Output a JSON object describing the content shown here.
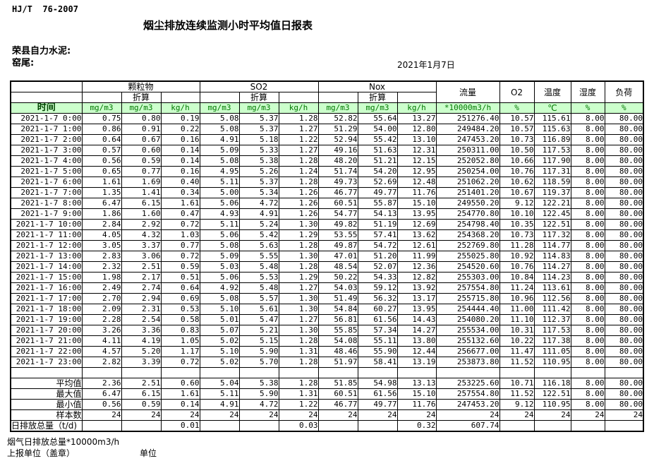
{
  "page": {
    "doc_code": "HJ/T  76-2007",
    "title": "烟尘排放连续监测小时平均值日报表",
    "company": "荣县自力水泥:",
    "location": "窑尾:",
    "date": "2021年1月7日"
  },
  "colors": {
    "header_bg": "#ccffcc",
    "unit_text": "#007700",
    "time_header_text": "#004400",
    "border": "#000000"
  },
  "table": {
    "col_groups": {
      "pm": "颗粒物",
      "so2": "SO2",
      "nox": "Nox",
      "flow": "流量",
      "o2": "O2",
      "temp": "温度",
      "humidity": "湿度",
      "load": "负荷"
    },
    "converted_label": "折算",
    "time_label": "时间",
    "units": {
      "mgm3": "mg/m3",
      "kgh": "kg/h",
      "flow": "*10000m3/h",
      "percent": "%",
      "celsius": "℃"
    },
    "rows": [
      [
        "2021-1-7 0:00",
        "0.75",
        "0.80",
        "0.19",
        "5.08",
        "5.37",
        "1.28",
        "52.82",
        "55.64",
        "13.27",
        "251276.40",
        "10.57",
        "115.61",
        "8.00",
        "80.00"
      ],
      [
        "2021-1-7 1:00",
        "0.86",
        "0.91",
        "0.22",
        "5.08",
        "5.37",
        "1.27",
        "51.29",
        "54.00",
        "12.80",
        "249484.20",
        "10.57",
        "115.63",
        "8.00",
        "80.00"
      ],
      [
        "2021-1-7 2:00",
        "0.64",
        "0.67",
        "0.16",
        "4.91",
        "5.18",
        "1.22",
        "52.94",
        "55.42",
        "13.10",
        "247453.20",
        "10.73",
        "116.89",
        "8.00",
        "80.00"
      ],
      [
        "2021-1-7 3:00",
        "0.57",
        "0.60",
        "0.14",
        "5.09",
        "5.33",
        "1.27",
        "49.16",
        "51.63",
        "12.31",
        "250311.00",
        "10.50",
        "117.53",
        "8.00",
        "80.00"
      ],
      [
        "2021-1-7 4:00",
        "0.56",
        "0.59",
        "0.14",
        "5.08",
        "5.38",
        "1.28",
        "48.20",
        "51.21",
        "12.15",
        "252052.80",
        "10.66",
        "117.90",
        "8.00",
        "80.00"
      ],
      [
        "2021-1-7 5:00",
        "0.65",
        "0.77",
        "0.16",
        "4.95",
        "5.26",
        "1.24",
        "51.74",
        "54.20",
        "12.95",
        "250254.00",
        "10.76",
        "117.31",
        "8.00",
        "80.00"
      ],
      [
        "2021-1-7 6:00",
        "1.61",
        "1.69",
        "0.40",
        "5.11",
        "5.37",
        "1.28",
        "49.73",
        "52.69",
        "12.48",
        "251062.20",
        "10.62",
        "118.59",
        "8.00",
        "80.00"
      ],
      [
        "2021-1-7 7:00",
        "1.35",
        "1.41",
        "0.34",
        "5.00",
        "5.34",
        "1.26",
        "46.77",
        "49.77",
        "11.76",
        "251401.20",
        "10.67",
        "119.37",
        "8.00",
        "80.00"
      ],
      [
        "2021-1-7 8:00",
        "6.47",
        "6.15",
        "1.61",
        "5.06",
        "4.72",
        "1.26",
        "60.51",
        "55.87",
        "15.10",
        "249550.20",
        "9.12",
        "122.21",
        "8.00",
        "80.00"
      ],
      [
        "2021-1-7 9:00",
        "1.86",
        "1.60",
        "0.47",
        "4.93",
        "4.91",
        "1.26",
        "54.77",
        "54.13",
        "13.95",
        "254770.80",
        "10.10",
        "122.45",
        "8.00",
        "80.00"
      ],
      [
        "2021-1-7 10:00",
        "2.84",
        "2.92",
        "0.72",
        "5.11",
        "5.24",
        "1.30",
        "49.82",
        "51.19",
        "12.69",
        "254798.40",
        "10.35",
        "122.51",
        "8.00",
        "80.00"
      ],
      [
        "2021-1-7 11:00",
        "4.05",
        "4.32",
        "1.03",
        "5.06",
        "5.42",
        "1.29",
        "53.55",
        "57.41",
        "13.62",
        "254368.20",
        "10.73",
        "117.32",
        "8.00",
        "80.00"
      ],
      [
        "2021-1-7 12:00",
        "3.05",
        "3.37",
        "0.77",
        "5.08",
        "5.63",
        "1.28",
        "49.87",
        "54.72",
        "12.61",
        "252769.80",
        "11.28",
        "114.77",
        "8.00",
        "80.00"
      ],
      [
        "2021-1-7 13:00",
        "2.83",
        "3.06",
        "0.72",
        "5.09",
        "5.55",
        "1.30",
        "47.01",
        "51.20",
        "11.99",
        "255025.80",
        "10.92",
        "114.83",
        "8.00",
        "80.00"
      ],
      [
        "2021-1-7 14:00",
        "2.32",
        "2.51",
        "0.59",
        "5.03",
        "5.48",
        "1.28",
        "48.54",
        "52.07",
        "12.36",
        "254520.60",
        "10.76",
        "114.27",
        "8.00",
        "80.00"
      ],
      [
        "2021-1-7 15:00",
        "1.98",
        "2.17",
        "0.51",
        "5.06",
        "5.53",
        "1.29",
        "50.22",
        "54.33",
        "12.82",
        "255303.00",
        "10.84",
        "114.23",
        "8.00",
        "80.00"
      ],
      [
        "2021-1-7 16:00",
        "2.49",
        "2.74",
        "0.64",
        "4.92",
        "5.48",
        "1.27",
        "54.03",
        "59.12",
        "13.92",
        "257554.80",
        "11.24",
        "113.61",
        "8.00",
        "80.00"
      ],
      [
        "2021-1-7 17:00",
        "2.70",
        "2.94",
        "0.69",
        "5.08",
        "5.57",
        "1.30",
        "51.49",
        "56.32",
        "13.17",
        "255715.80",
        "10.96",
        "112.56",
        "8.00",
        "80.00"
      ],
      [
        "2021-1-7 18:00",
        "2.09",
        "2.31",
        "0.53",
        "5.10",
        "5.61",
        "1.30",
        "54.84",
        "60.27",
        "13.95",
        "254444.40",
        "11.00",
        "111.42",
        "8.00",
        "80.00"
      ],
      [
        "2021-1-7 19:00",
        "2.28",
        "2.54",
        "0.58",
        "5.01",
        "5.47",
        "1.27",
        "56.81",
        "61.56",
        "14.43",
        "254080.20",
        "11.10",
        "112.37",
        "8.00",
        "80.00"
      ],
      [
        "2021-1-7 20:00",
        "3.26",
        "3.36",
        "0.83",
        "5.07",
        "5.21",
        "1.30",
        "55.85",
        "57.34",
        "14.27",
        "255534.00",
        "10.31",
        "117.53",
        "8.00",
        "80.00"
      ],
      [
        "2021-1-7 21:00",
        "4.11",
        "4.19",
        "1.05",
        "5.02",
        "5.15",
        "1.28",
        "54.08",
        "55.11",
        "13.80",
        "255132.60",
        "10.22",
        "117.38",
        "8.00",
        "80.00"
      ],
      [
        "2021-1-7 22:00",
        "4.57",
        "5.20",
        "1.17",
        "5.10",
        "5.90",
        "1.31",
        "48.46",
        "55.90",
        "12.44",
        "256677.00",
        "11.47",
        "111.05",
        "8.00",
        "80.00"
      ],
      [
        "2021-1-7 23:00",
        "2.82",
        "3.39",
        "0.72",
        "5.02",
        "5.70",
        "1.28",
        "51.97",
        "58.41",
        "13.19",
        "253873.80",
        "11.52",
        "110.95",
        "8.00",
        "80.00"
      ]
    ],
    "summary": [
      {
        "label": "平均值",
        "align": "right",
        "values": [
          "2.36",
          "2.51",
          "0.60",
          "5.04",
          "5.38",
          "1.28",
          "51.85",
          "54.98",
          "13.13",
          "253225.60",
          "10.71",
          "116.18",
          "8.00",
          "80.00"
        ]
      },
      {
        "label": "最大值",
        "align": "right",
        "values": [
          "6.47",
          "6.15",
          "1.61",
          "5.11",
          "5.90",
          "1.31",
          "60.51",
          "61.56",
          "15.10",
          "257554.80",
          "11.52",
          "122.51",
          "8.00",
          "80.00"
        ]
      },
      {
        "label": "最小值",
        "align": "right",
        "values": [
          "0.56",
          "0.59",
          "0.14",
          "4.91",
          "4.72",
          "1.22",
          "46.77",
          "49.77",
          "11.76",
          "247453.20",
          "9.12",
          "110.95",
          "8.00",
          "80.00"
        ]
      },
      {
        "label": "样本数",
        "align": "right",
        "values": [
          "24",
          "24",
          "24",
          "24",
          "24",
          "24",
          "24",
          "24",
          "24",
          "24",
          "24",
          "24",
          "24",
          "24"
        ]
      },
      {
        "label": "日排放总量（t/d)",
        "align": "left",
        "values": [
          "",
          "",
          "0.01",
          "",
          "",
          "0.03",
          "",
          "",
          "0.32",
          "607.74",
          "",
          "",
          "",
          ""
        ]
      }
    ]
  },
  "footer": {
    "line1": "烟气日排放总量*10000m3/h",
    "line2_left": "上报单位（盖章）",
    "line2_right": "单位"
  }
}
